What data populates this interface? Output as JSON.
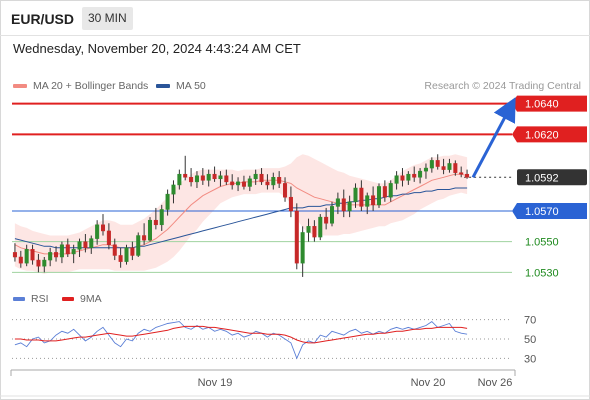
{
  "header": {
    "symbol": "EUR/USD",
    "timeframe": "30 MIN",
    "datetime": "Wednesday, November 20, 2024 4:43:24 AM CET"
  },
  "legend": {
    "ma20_label": "MA 20 + Bollinger Bands",
    "ma20_color": "#f28b82",
    "ma50_label": "MA 50",
    "ma50_color": "#2a5599",
    "credit": "Research © 2024 Trading Central"
  },
  "rsi_legend": {
    "rsi_label": "RSI",
    "rsi_color": "#5b7fd6",
    "ma_label": "9MA",
    "ma_color": "#e02020"
  },
  "chart_data": {
    "type": "candlestick",
    "ylim": [
      1.0525,
      1.0645
    ],
    "current_price": 1.0592,
    "levels": [
      {
        "value": 1.064,
        "label": "1.0640",
        "kind": "resistance",
        "color": "#e02020"
      },
      {
        "value": 1.062,
        "label": "1.0620",
        "kind": "resistance",
        "color": "#e02020"
      },
      {
        "value": 1.0592,
        "label": "1.0592",
        "kind": "current",
        "color": "#333333"
      },
      {
        "value": 1.057,
        "label": "1.0570",
        "kind": "pivot",
        "color": "#2a63d4"
      },
      {
        "value": 1.055,
        "label": "1.0550",
        "kind": "support",
        "color": "#1e8a1e"
      },
      {
        "value": 1.053,
        "label": "1.0530",
        "kind": "support",
        "color": "#1e8a1e"
      }
    ],
    "projection": {
      "from": 1.0592,
      "to": 1.064
    },
    "x_labels": [
      "Nov 19",
      "Nov 20",
      "Nov 26"
    ],
    "candles": [
      [
        1.0543,
        1.0549,
        1.0537,
        1.054
      ],
      [
        1.054,
        1.0544,
        1.0533,
        1.0536
      ],
      [
        1.0536,
        1.0548,
        1.0534,
        1.0545
      ],
      [
        1.0545,
        1.0548,
        1.0535,
        1.0538
      ],
      [
        1.0538,
        1.0542,
        1.053,
        1.0534
      ],
      [
        1.0534,
        1.054,
        1.053,
        1.0538
      ],
      [
        1.0538,
        1.0546,
        1.0534,
        1.0543
      ],
      [
        1.0543,
        1.0547,
        1.0537,
        1.054
      ],
      [
        1.054,
        1.055,
        1.0536,
        1.0548
      ],
      [
        1.0548,
        1.0552,
        1.054,
        1.0542
      ],
      [
        1.0542,
        1.0548,
        1.0536,
        1.0545
      ],
      [
        1.0545,
        1.0552,
        1.054,
        1.055
      ],
      [
        1.055,
        1.0555,
        1.0543,
        1.0546
      ],
      [
        1.0546,
        1.0554,
        1.0542,
        1.0552
      ],
      [
        1.0552,
        1.0564,
        1.0548,
        1.0561
      ],
      [
        1.0561,
        1.0568,
        1.0554,
        1.0557
      ],
      [
        1.0557,
        1.0562,
        1.0545,
        1.0548
      ],
      [
        1.0548,
        1.0552,
        1.0538,
        1.0541
      ],
      [
        1.0541,
        1.0546,
        1.0533,
        1.0537
      ],
      [
        1.0537,
        1.0548,
        1.0535,
        1.0546
      ],
      [
        1.0546,
        1.055,
        1.0538,
        1.0541
      ],
      [
        1.0541,
        1.0556,
        1.054,
        1.0554
      ],
      [
        1.0554,
        1.0562,
        1.0548,
        1.0551
      ],
      [
        1.0551,
        1.0566,
        1.055,
        1.0564
      ],
      [
        1.0564,
        1.0572,
        1.0558,
        1.0561
      ],
      [
        1.0561,
        1.0574,
        1.0557,
        1.0571
      ],
      [
        1.0571,
        1.0584,
        1.0567,
        1.0581
      ],
      [
        1.0581,
        1.059,
        1.0575,
        1.0587
      ],
      [
        1.0587,
        1.0597,
        1.0584,
        1.0594
      ],
      [
        1.0594,
        1.0606,
        1.059,
        1.0592
      ],
      [
        1.0592,
        1.0598,
        1.0586,
        1.0589
      ],
      [
        1.0589,
        1.0596,
        1.0585,
        1.0593
      ],
      [
        1.0593,
        1.0598,
        1.0587,
        1.059
      ],
      [
        1.059,
        1.0597,
        1.0586,
        1.0594
      ],
      [
        1.0594,
        1.0599,
        1.0589,
        1.0591
      ],
      [
        1.0591,
        1.0596,
        1.0586,
        1.0593
      ],
      [
        1.0593,
        1.0597,
        1.0587,
        1.0589
      ],
      [
        1.0589,
        1.0594,
        1.0584,
        1.0587
      ],
      [
        1.0587,
        1.0592,
        1.0583,
        1.0589
      ],
      [
        1.0589,
        1.0593,
        1.0584,
        1.0586
      ],
      [
        1.0586,
        1.0593,
        1.0583,
        1.0591
      ],
      [
        1.0591,
        1.0597,
        1.0587,
        1.0594
      ],
      [
        1.0594,
        1.0598,
        1.0587,
        1.0589
      ],
      [
        1.0589,
        1.0594,
        1.0584,
        1.0587
      ],
      [
        1.0587,
        1.0595,
        1.0584,
        1.0592
      ],
      [
        1.0592,
        1.0596,
        1.0585,
        1.0588
      ],
      [
        1.0588,
        1.0592,
        1.0576,
        1.0579
      ],
      [
        1.0579,
        1.0586,
        1.0566,
        1.057
      ],
      [
        1.057,
        1.0575,
        1.0532,
        1.0536
      ],
      [
        1.0536,
        1.056,
        1.0527,
        1.0556
      ],
      [
        1.0556,
        1.0565,
        1.055,
        1.056
      ],
      [
        1.056,
        1.0564,
        1.055,
        1.0553
      ],
      [
        1.0553,
        1.0568,
        1.0551,
        1.0566
      ],
      [
        1.0566,
        1.0572,
        1.0558,
        1.0562
      ],
      [
        1.0562,
        1.0576,
        1.056,
        1.0573
      ],
      [
        1.0573,
        1.0582,
        1.0568,
        1.0578
      ],
      [
        1.0578,
        1.0584,
        1.0566,
        1.057
      ],
      [
        1.057,
        1.058,
        1.0566,
        1.0576
      ],
      [
        1.0576,
        1.0588,
        1.0572,
        1.0585
      ],
      [
        1.0585,
        1.059,
        1.057,
        1.0573
      ],
      [
        1.0573,
        1.0582,
        1.0568,
        1.058
      ],
      [
        1.058,
        1.0586,
        1.057,
        1.0574
      ],
      [
        1.0574,
        1.0588,
        1.0572,
        1.0586
      ],
      [
        1.0586,
        1.059,
        1.0576,
        1.0579
      ],
      [
        1.0579,
        1.059,
        1.0576,
        1.0588
      ],
      [
        1.0588,
        1.0596,
        1.0584,
        1.0593
      ],
      [
        1.0593,
        1.0598,
        1.0586,
        1.059
      ],
      [
        1.059,
        1.0596,
        1.0587,
        1.0594
      ],
      [
        1.0594,
        1.0599,
        1.0589,
        1.0592
      ],
      [
        1.0592,
        1.0598,
        1.0588,
        1.0596
      ],
      [
        1.0596,
        1.0601,
        1.0591,
        1.0598
      ],
      [
        1.0598,
        1.0605,
        1.0595,
        1.0603
      ],
      [
        1.0603,
        1.0607,
        1.0597,
        1.0599
      ],
      [
        1.0599,
        1.0604,
        1.0594,
        1.0597
      ],
      [
        1.0597,
        1.0604,
        1.0595,
        1.0601
      ],
      [
        1.0601,
        1.0603,
        1.0593,
        1.0595
      ],
      [
        1.0595,
        1.0599,
        1.0592,
        1.0594
      ],
      [
        1.0594,
        1.0597,
        1.0591,
        1.0592
      ]
    ],
    "ma20": [
      1.0548,
      1.0546,
      1.0545,
      1.0544,
      1.0543,
      1.0542,
      1.0542,
      1.0542,
      1.0542,
      1.0542,
      1.0543,
      1.0544,
      1.0545,
      1.0546,
      1.0547,
      1.0548,
      1.0548,
      1.0547,
      1.0546,
      1.0546,
      1.0546,
      1.0547,
      1.0548,
      1.055,
      1.0552,
      1.0555,
      1.0558,
      1.0562,
      1.0566,
      1.057,
      1.0574,
      1.0577,
      1.058,
      1.0582,
      1.0584,
      1.0586,
      1.0587,
      1.0588,
      1.0588,
      1.0589,
      1.0589,
      1.0589,
      1.059,
      1.059,
      1.059,
      1.059,
      1.0589,
      1.0588,
      1.0585,
      1.0583,
      1.0581,
      1.0579,
      1.0578,
      1.0577,
      1.0576,
      1.0575,
      1.0575,
      1.0574,
      1.0574,
      1.0574,
      1.0574,
      1.0574,
      1.0574,
      1.0574,
      1.0576,
      1.0578,
      1.058,
      1.0582,
      1.0584,
      1.0586,
      1.0588,
      1.059,
      1.0591,
      1.0592,
      1.0593,
      1.0594,
      1.0594,
      1.0593
    ],
    "ma50": [
      1.0552,
      1.0551,
      1.055,
      1.0549,
      1.0548,
      1.0547,
      1.0547,
      1.0546,
      1.0546,
      1.0546,
      1.0546,
      1.0546,
      1.0546,
      1.0546,
      1.0546,
      1.0546,
      1.0546,
      1.0546,
      1.0546,
      1.0546,
      1.0546,
      1.0547,
      1.0547,
      1.0548,
      1.0549,
      1.055,
      1.0551,
      1.0552,
      1.0553,
      1.0554,
      1.0555,
      1.0556,
      1.0557,
      1.0558,
      1.0559,
      1.056,
      1.0561,
      1.0562,
      1.0563,
      1.0564,
      1.0565,
      1.0566,
      1.0567,
      1.0568,
      1.0569,
      1.057,
      1.0571,
      1.0572,
      1.0572,
      1.0572,
      1.0573,
      1.0573,
      1.0573,
      1.0574,
      1.0574,
      1.0575,
      1.0575,
      1.0576,
      1.0576,
      1.0577,
      1.0577,
      1.0578,
      1.0578,
      1.0579,
      1.058,
      1.058,
      1.0581,
      1.0581,
      1.0582,
      1.0582,
      1.0583,
      1.0583,
      1.0584,
      1.0584,
      1.0584,
      1.0585,
      1.0585,
      1.0585
    ],
    "bb_width": [
      0.0014,
      0.0014,
      0.0014,
      0.0013,
      0.0013,
      0.0013,
      0.0012,
      0.0012,
      0.0012,
      0.0012,
      0.0012,
      0.0012,
      0.0013,
      0.0014,
      0.0015,
      0.0016,
      0.0016,
      0.0016,
      0.0015,
      0.0015,
      0.0015,
      0.0016,
      0.0017,
      0.0018,
      0.0019,
      0.002,
      0.0021,
      0.0022,
      0.0022,
      0.0021,
      0.002,
      0.0019,
      0.0017,
      0.0015,
      0.0013,
      0.0011,
      0.001,
      0.0009,
      0.0008,
      0.0008,
      0.0008,
      0.0008,
      0.0008,
      0.0008,
      0.0008,
      0.0008,
      0.001,
      0.0013,
      0.002,
      0.0024,
      0.0025,
      0.0025,
      0.0024,
      0.0023,
      0.0022,
      0.0021,
      0.002,
      0.0019,
      0.0018,
      0.0017,
      0.0016,
      0.0015,
      0.0014,
      0.0014,
      0.0014,
      0.0015,
      0.0016,
      0.0016,
      0.0016,
      0.0015,
      0.0015,
      0.0015,
      0.0014,
      0.0014,
      0.0013,
      0.0013,
      0.0012,
      0.0012
    ],
    "rsi": {
      "ylim": [
        20,
        80
      ],
      "ticks": [
        70,
        50,
        30
      ],
      "rsi": [
        44,
        46,
        42,
        50,
        52,
        46,
        48,
        54,
        58,
        56,
        60,
        54,
        48,
        52,
        58,
        62,
        54,
        46,
        42,
        50,
        48,
        56,
        60,
        58,
        62,
        64,
        66,
        67,
        68,
        62,
        60,
        64,
        60,
        62,
        58,
        60,
        58,
        54,
        56,
        52,
        54,
        58,
        56,
        52,
        56,
        54,
        50,
        46,
        30,
        44,
        48,
        46,
        54,
        52,
        58,
        56,
        54,
        58,
        60,
        56,
        58,
        55,
        58,
        56,
        60,
        62,
        60,
        62,
        60,
        62,
        64,
        68,
        62,
        64,
        66,
        58,
        56,
        55
      ],
      "ma9": [
        50,
        50,
        49,
        49,
        49,
        48,
        48,
        48,
        49,
        50,
        51,
        52,
        52,
        53,
        54,
        55,
        56,
        55,
        54,
        53,
        53,
        54,
        55,
        56,
        57,
        58,
        59,
        61,
        62,
        63,
        63,
        63,
        63,
        62,
        62,
        61,
        60,
        59,
        58,
        57,
        56,
        56,
        56,
        55,
        55,
        55,
        54,
        52,
        49,
        47,
        46,
        46,
        47,
        48,
        49,
        50,
        51,
        52,
        53,
        54,
        55,
        55,
        56,
        56,
        57,
        58,
        58,
        59,
        60,
        60,
        61,
        61,
        62,
        62,
        62,
        62,
        62,
        61
      ]
    }
  }
}
